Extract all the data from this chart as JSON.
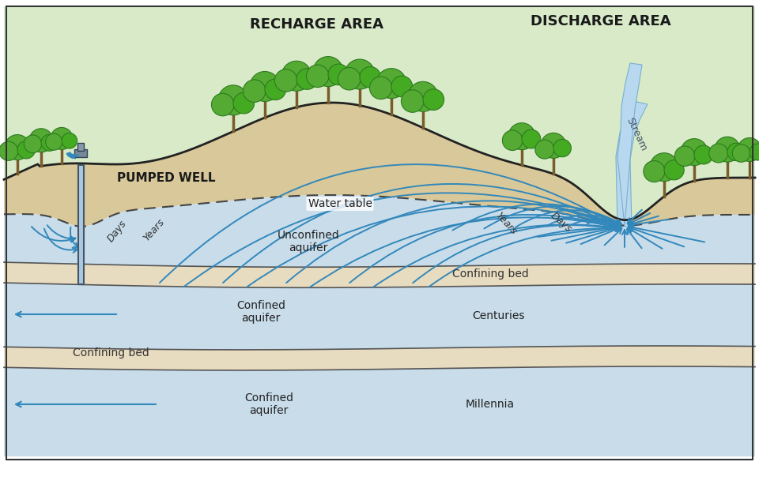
{
  "title_recharge": "RECHARGE AREA",
  "title_discharge": "DISCHARGE AREA",
  "label_pumped_well": "PUMPED WELL",
  "label_water_table": "Water table",
  "label_unconfined": "Unconfined\naquifer",
  "label_confining_bed1": "Confining bed",
  "label_confined1": "Confined\naquifer",
  "label_confining_bed2": "Confining bed",
  "label_confined2": "Confined\naquifer",
  "label_days1": "Days",
  "label_years1": "Years",
  "label_years2": "Years",
  "label_days2": "Days",
  "label_centuries": "Centuries",
  "label_millennia": "Millennia",
  "label_stream": "Stream",
  "color_hill_fill": "#d8eac8",
  "color_sandy": "#d8c89a",
  "color_aquifer": "#c8dcea",
  "color_confining": "#e8dcc0",
  "color_flow_arrow": "#3388bb",
  "color_border": "#333333",
  "color_stream": "#b8d8f0",
  "fig_width": 9.6,
  "fig_height": 6.18
}
